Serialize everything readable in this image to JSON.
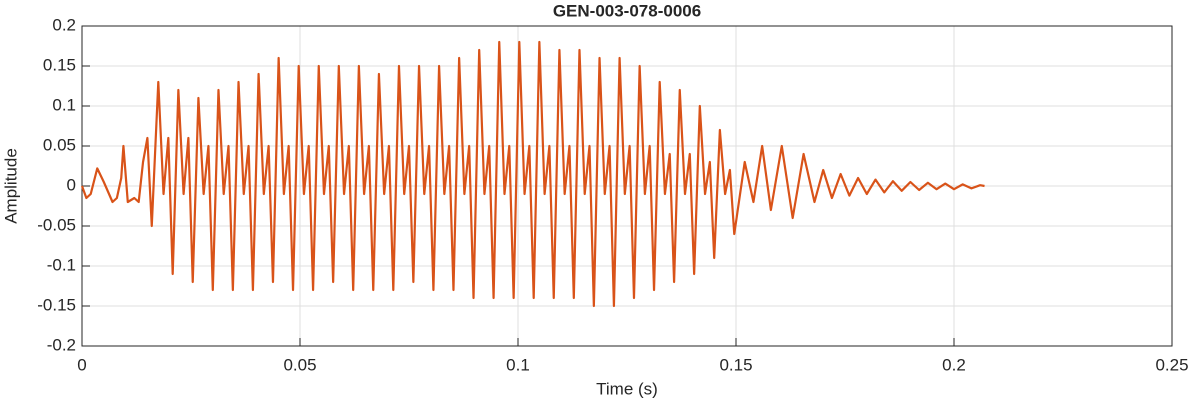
{
  "chart_data": {
    "type": "line",
    "title": "GEN-003-078-0006",
    "x_label": "Time (s)",
    "y_label": "Amplitude",
    "color": "#D95319",
    "grid": true,
    "xlim": [
      0,
      0.25
    ],
    "xticks": [
      0,
      0.05,
      0.1,
      0.15,
      0.2,
      0.25
    ],
    "ylim": [
      -0.2,
      0.2
    ],
    "yticks": [
      -0.2,
      -0.15,
      -0.1,
      -0.05,
      0,
      0.05,
      0.1,
      0.15,
      0.2
    ],
    "x": [
      0,
      0.001,
      0.002,
      0.0035,
      0.005,
      0.007,
      0.008,
      0.009,
      0.0095,
      0.0105,
      0.012,
      0.013,
      0.014,
      0.015,
      0.016,
      0.0175,
      0.0187,
      0.0198,
      0.0208,
      0.0221,
      0.0233,
      0.0244,
      0.0254,
      0.0267,
      0.0279,
      0.029,
      0.03,
      0.0313,
      0.0325,
      0.0336,
      0.0346,
      0.0359,
      0.0371,
      0.0382,
      0.0392,
      0.0405,
      0.0417,
      0.0428,
      0.0438,
      0.0451,
      0.0463,
      0.0474,
      0.0484,
      0.0497,
      0.0509,
      0.052,
      0.053,
      0.0543,
      0.0555,
      0.0566,
      0.0576,
      0.0589,
      0.0601,
      0.0612,
      0.0622,
      0.0635,
      0.0647,
      0.0658,
      0.0668,
      0.0681,
      0.0693,
      0.0704,
      0.0714,
      0.0727,
      0.0739,
      0.075,
      0.076,
      0.0773,
      0.0785,
      0.0796,
      0.0806,
      0.0819,
      0.0831,
      0.0842,
      0.0852,
      0.0865,
      0.0877,
      0.0888,
      0.0898,
      0.0911,
      0.0923,
      0.0934,
      0.0944,
      0.0957,
      0.0969,
      0.098,
      0.099,
      0.1003,
      0.1015,
      0.1026,
      0.1036,
      0.1049,
      0.1061,
      0.1072,
      0.1082,
      0.1095,
      0.1107,
      0.1118,
      0.1128,
      0.1141,
      0.1153,
      0.1164,
      0.1174,
      0.1187,
      0.1199,
      0.121,
      0.122,
      0.1233,
      0.1245,
      0.1256,
      0.1266,
      0.1279,
      0.1291,
      0.1302,
      0.1312,
      0.1325,
      0.1337,
      0.1348,
      0.1358,
      0.1371,
      0.1383,
      0.1394,
      0.1404,
      0.1417,
      0.1429,
      0.144,
      0.145,
      0.1463,
      0.1475,
      0.1486,
      0.1496,
      0.152,
      0.154,
      0.156,
      0.158,
      0.1605,
      0.163,
      0.1655,
      0.168,
      0.17,
      0.172,
      0.174,
      0.176,
      0.178,
      0.18,
      0.182,
      0.184,
      0.186,
      0.188,
      0.19,
      0.192,
      0.194,
      0.196,
      0.198,
      0.2,
      0.202,
      0.204,
      0.206,
      0.207
    ],
    "values": [
      0,
      -0.015,
      -0.01,
      0.022,
      0.005,
      -0.02,
      -0.015,
      0.01,
      0.05,
      -0.02,
      -0.015,
      -0.02,
      0.03,
      0.06,
      -0.05,
      0.13,
      -0.01,
      0.06,
      -0.11,
      0.12,
      -0.01,
      0.06,
      -0.12,
      0.11,
      -0.01,
      0.05,
      -0.13,
      0.12,
      -0.01,
      0.05,
      -0.13,
      0.13,
      -0.01,
      0.05,
      -0.13,
      0.14,
      -0.01,
      0.05,
      -0.12,
      0.16,
      -0.01,
      0.05,
      -0.13,
      0.15,
      -0.01,
      0.05,
      -0.13,
      0.15,
      -0.01,
      0.05,
      -0.12,
      0.15,
      -0.01,
      0.05,
      -0.13,
      0.15,
      -0.01,
      0.05,
      -0.13,
      0.14,
      -0.01,
      0.05,
      -0.13,
      0.15,
      -0.01,
      0.05,
      -0.12,
      0.15,
      -0.01,
      0.05,
      -0.13,
      0.15,
      -0.01,
      0.05,
      -0.13,
      0.16,
      -0.01,
      0.05,
      -0.14,
      0.17,
      -0.01,
      0.05,
      -0.14,
      0.18,
      -0.01,
      0.05,
      -0.14,
      0.18,
      -0.01,
      0.05,
      -0.14,
      0.18,
      -0.01,
      0.05,
      -0.14,
      0.17,
      -0.01,
      0.05,
      -0.14,
      0.17,
      -0.01,
      0.05,
      -0.15,
      0.16,
      -0.01,
      0.05,
      -0.15,
      0.16,
      -0.01,
      0.05,
      -0.14,
      0.15,
      -0.01,
      0.05,
      -0.13,
      0.13,
      -0.01,
      0.04,
      -0.12,
      0.12,
      -0.01,
      0.04,
      -0.11,
      0.1,
      -0.01,
      0.03,
      -0.09,
      0.07,
      -0.01,
      0.02,
      -0.06,
      0.03,
      -0.02,
      0.05,
      -0.03,
      0.05,
      -0.04,
      0.04,
      -0.02,
      0.02,
      -0.015,
      0.015,
      -0.012,
      0.01,
      -0.01,
      0.008,
      -0.008,
      0.006,
      -0.006,
      0.005,
      -0.005,
      0.004,
      -0.004,
      0.003,
      -0.004,
      0.002,
      -0.003,
      0.001,
      0
    ]
  }
}
